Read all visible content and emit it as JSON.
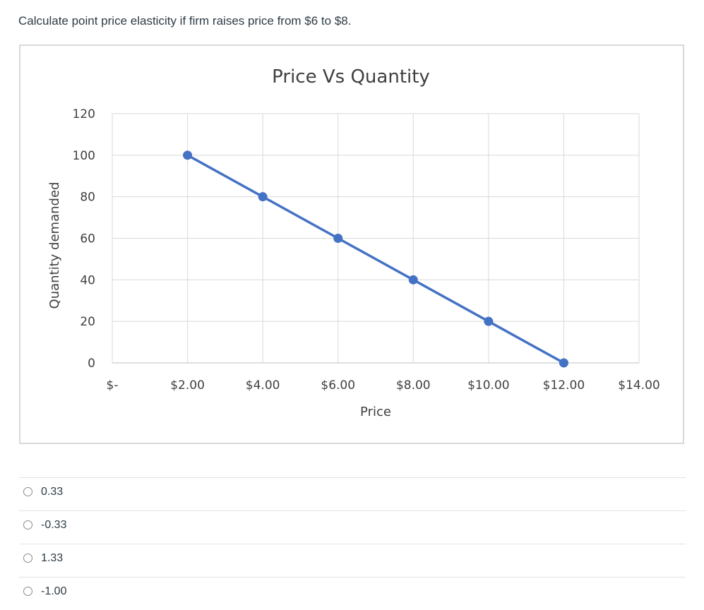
{
  "question": {
    "text": "Calculate point price elasticity if firm raises price from $6 to $8."
  },
  "chart_data": {
    "type": "scatter",
    "title": "Price Vs Quantity",
    "xlabel": "Price",
    "ylabel": "Quantity demanded",
    "x_tick_labels": [
      "$-",
      "$2.00",
      "$4.00",
      "$6.00",
      "$8.00",
      "$10.00",
      "$12.00",
      "$14.00"
    ],
    "x_ticks": [
      0,
      2,
      4,
      6,
      8,
      10,
      12,
      14
    ],
    "y_ticks": [
      0,
      20,
      40,
      60,
      80,
      100,
      120
    ],
    "xlim": [
      0,
      14
    ],
    "ylim": [
      0,
      120
    ],
    "grid": true,
    "series": [
      {
        "x": [
          2,
          4,
          6,
          8,
          10,
          12
        ],
        "y": [
          100,
          80,
          60,
          40,
          20,
          0
        ],
        "color": "#4472c4",
        "connected": true
      }
    ]
  },
  "answers": {
    "options": [
      {
        "label": "0.33"
      },
      {
        "label": "-0.33"
      },
      {
        "label": "1.33"
      },
      {
        "label": "-1.00"
      }
    ]
  }
}
